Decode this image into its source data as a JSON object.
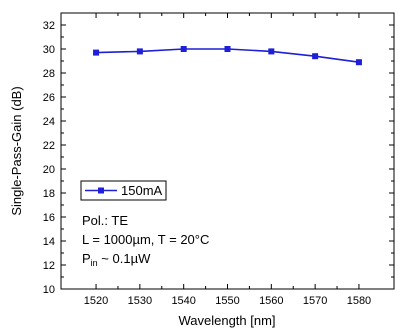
{
  "chart_data": {
    "type": "line",
    "xlabel": "Wavelength [nm]",
    "ylabel": "Single-Pass-Gain (dB)",
    "xlim": [
      1512,
      1588
    ],
    "ylim": [
      10,
      33
    ],
    "x_ticks": [
      1520,
      1530,
      1540,
      1550,
      1560,
      1570,
      1580
    ],
    "y_ticks": [
      10,
      12,
      14,
      16,
      18,
      20,
      22,
      24,
      26,
      28,
      30,
      32
    ],
    "grid": false,
    "legend": {
      "position": "middle-left",
      "entries": [
        "150mA"
      ]
    },
    "series": [
      {
        "name": "150mA",
        "color": "#1f1fd8",
        "marker": "square",
        "x": [
          1520,
          1530,
          1540,
          1550,
          1560,
          1570,
          1580
        ],
        "y": [
          29.7,
          29.8,
          30.0,
          30.0,
          29.8,
          29.4,
          28.9
        ]
      }
    ],
    "annotations": {
      "pol": "Pol.: TE",
      "length_temp": "L = 1000µm, T = 20°C",
      "pin_main": "P",
      "pin_sub": "in",
      "pin_rest": " ~ 0.1µW"
    }
  }
}
